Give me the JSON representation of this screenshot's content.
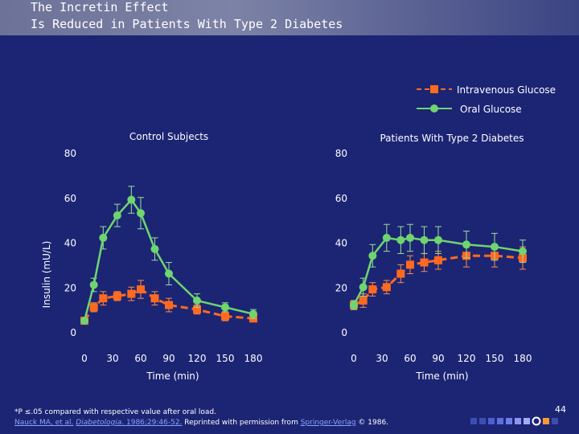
{
  "slide": {
    "title_line1": "The Incretin Effect",
    "title_line2": "Is Reduced in Patients With Type 2 Diabetes",
    "page_number": "44",
    "footnote": "*P ≤.05 compared with respective value after oral load.",
    "reference_prefix": "Nauck MA, et al.",
    "reference_journal": "Diabetologia",
    "reference_citation": ". 1986;29:46-52.",
    "reference_middle": " Reprinted with permission from ",
    "reference_publisher": "Springer-Verlag",
    "reference_suffix": " © 1986."
  },
  "colors": {
    "background": "#1c2574",
    "oral": "#6fd56f",
    "iv": "#ff6a20",
    "text": "#ffffff"
  },
  "chart_data": [
    {
      "type": "line",
      "title": "Control Subjects",
      "xlabel": "Time (min)",
      "ylabel": "Insulin (mU/L)",
      "xlim": [
        0,
        180
      ],
      "ylim": [
        0,
        80
      ],
      "x_ticks": [
        0,
        30,
        60,
        90,
        120,
        150,
        180
      ],
      "y_ticks": [
        0,
        20,
        40,
        60,
        80
      ],
      "series": [
        {
          "name": "Oral Glucose",
          "style": "solid",
          "x": [
            0,
            10,
            20,
            35,
            50,
            60,
            75,
            90,
            120,
            150,
            180
          ],
          "y": [
            5,
            21,
            42,
            52,
            59,
            53,
            37,
            26,
            14,
            11,
            8
          ],
          "err": [
            1,
            3,
            5,
            5,
            6,
            7,
            5,
            5,
            3,
            2,
            2
          ]
        },
        {
          "name": "Intravenous Glucose",
          "style": "dashed",
          "x": [
            0,
            10,
            20,
            35,
            50,
            60,
            75,
            90,
            120,
            150,
            180
          ],
          "y": [
            5,
            11,
            15,
            16,
            17,
            19,
            15,
            12,
            10,
            7,
            6
          ],
          "err": [
            1,
            2,
            3,
            2,
            3,
            4,
            3,
            3,
            2,
            2,
            1
          ]
        }
      ]
    },
    {
      "type": "line",
      "title": "Patients With Type 2 Diabetes",
      "xlabel": "Time (min)",
      "ylabel": "",
      "xlim": [
        0,
        180
      ],
      "ylim": [
        0,
        80
      ],
      "x_ticks": [
        0,
        30,
        60,
        90,
        120,
        150,
        180
      ],
      "y_ticks": [
        0,
        20,
        40,
        60,
        80
      ],
      "series": [
        {
          "name": "Oral Glucose",
          "style": "solid",
          "x": [
            0,
            10,
            20,
            35,
            50,
            60,
            75,
            90,
            120,
            150,
            180
          ],
          "y": [
            12,
            20,
            34,
            42,
            41,
            42,
            41,
            41,
            39,
            38,
            36
          ],
          "err": [
            2,
            4,
            5,
            6,
            6,
            6,
            6,
            6,
            6,
            6,
            5
          ]
        },
        {
          "name": "Intravenous Glucose",
          "style": "dashed",
          "x": [
            0,
            10,
            20,
            35,
            50,
            60,
            75,
            90,
            120,
            150,
            180
          ],
          "y": [
            12,
            14,
            19,
            20,
            26,
            30,
            31,
            32,
            34,
            34,
            33
          ],
          "err": [
            2,
            3,
            3,
            3,
            4,
            4,
            4,
            4,
            5,
            5,
            5
          ]
        }
      ]
    }
  ],
  "legend": {
    "iv_label": "Intravenous Glucose",
    "oral_label": "Oral Glucose"
  }
}
